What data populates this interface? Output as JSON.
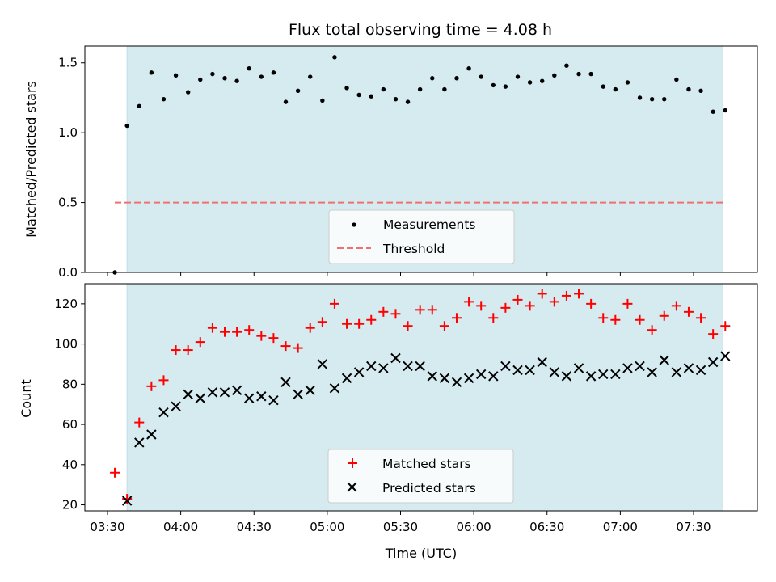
{
  "chart_data": [
    {
      "type": "scatter",
      "title": "Flux total observing time = 4.08 h",
      "ylabel": "Matched/Predicted stars",
      "xlabel": "",
      "x_ticks": [
        "03:30",
        "04:00",
        "04:30",
        "05:00",
        "05:30",
        "06:00",
        "06:30",
        "07:00",
        "07:30"
      ],
      "ylim": [
        0,
        1.62
      ],
      "y_ticks": [
        "0.0",
        "0.5",
        "1.0",
        "1.5"
      ],
      "shaded_interval": [
        "03:38",
        "07:42"
      ],
      "shade_color": "#d5ebf0",
      "series": [
        {
          "name": "Measurements",
          "marker": "dot",
          "color": "#000000",
          "x": [
            "03:33",
            "03:38",
            "03:43",
            "03:48",
            "03:53",
            "03:58",
            "04:03",
            "04:08",
            "04:13",
            "04:18",
            "04:23",
            "04:28",
            "04:33",
            "04:38",
            "04:43",
            "04:48",
            "04:53",
            "04:58",
            "05:03",
            "05:08",
            "05:13",
            "05:18",
            "05:23",
            "05:28",
            "05:33",
            "05:38",
            "05:43",
            "05:48",
            "05:53",
            "05:58",
            "06:03",
            "06:08",
            "06:13",
            "06:18",
            "06:23",
            "06:28",
            "06:33",
            "06:38",
            "06:43",
            "06:48",
            "06:53",
            "06:58",
            "07:03",
            "07:08",
            "07:13",
            "07:18",
            "07:23",
            "07:28",
            "07:33",
            "07:38",
            "07:43"
          ],
          "y": [
            0.0,
            1.05,
            1.19,
            1.43,
            1.24,
            1.41,
            1.29,
            1.38,
            1.42,
            1.39,
            1.37,
            1.46,
            1.4,
            1.43,
            1.22,
            1.3,
            1.4,
            1.23,
            1.54,
            1.32,
            1.27,
            1.26,
            1.31,
            1.24,
            1.22,
            1.31,
            1.39,
            1.31,
            1.39,
            1.46,
            1.4,
            1.34,
            1.33,
            1.4,
            1.36,
            1.37,
            1.41,
            1.48,
            1.42,
            1.42,
            1.33,
            1.31,
            1.36,
            1.25,
            1.24,
            1.24,
            1.38,
            1.31,
            1.3,
            1.15,
            1.16
          ]
        },
        {
          "name": "Threshold",
          "marker": "dashed-line",
          "color": "#f07070",
          "x": [
            "03:33",
            "07:43"
          ],
          "y": [
            0.5,
            0.5
          ]
        }
      ],
      "legend": {
        "position": "lower-center",
        "entries": [
          "Measurements",
          "Threshold"
        ]
      }
    },
    {
      "type": "scatter",
      "title": "",
      "ylabel": "Count",
      "xlabel": "Time (UTC)",
      "x_ticks": [
        "03:30",
        "04:00",
        "04:30",
        "05:00",
        "05:30",
        "06:00",
        "06:30",
        "07:00",
        "07:30"
      ],
      "ylim": [
        17,
        130
      ],
      "y_ticks": [
        "20",
        "40",
        "60",
        "80",
        "100",
        "120"
      ],
      "shaded_interval": [
        "03:38",
        "07:42"
      ],
      "shade_color": "#d5ebf0",
      "series": [
        {
          "name": "Matched stars",
          "marker": "plus",
          "color": "#ff0000",
          "x": [
            "03:33",
            "03:38",
            "03:43",
            "03:48",
            "03:53",
            "03:58",
            "04:03",
            "04:08",
            "04:13",
            "04:18",
            "04:23",
            "04:28",
            "04:33",
            "04:38",
            "04:43",
            "04:48",
            "04:53",
            "04:58",
            "05:03",
            "05:08",
            "05:13",
            "05:18",
            "05:23",
            "05:28",
            "05:33",
            "05:38",
            "05:43",
            "05:48",
            "05:53",
            "05:58",
            "06:03",
            "06:08",
            "06:13",
            "06:18",
            "06:23",
            "06:28",
            "06:33",
            "06:38",
            "06:43",
            "06:48",
            "06:53",
            "06:58",
            "07:03",
            "07:08",
            "07:13",
            "07:18",
            "07:23",
            "07:28",
            "07:33",
            "07:38",
            "07:43"
          ],
          "y": [
            36,
            23,
            61,
            79,
            82,
            97,
            97,
            101,
            108,
            106,
            106,
            107,
            104,
            103,
            99,
            98,
            108,
            111,
            120,
            110,
            110,
            112,
            116,
            115,
            109,
            117,
            117,
            109,
            113,
            121,
            119,
            113,
            118,
            122,
            119,
            125,
            121,
            124,
            125,
            120,
            113,
            112,
            120,
            112,
            107,
            114,
            119,
            116,
            113,
            105,
            109
          ]
        },
        {
          "name": "Predicted stars",
          "marker": "x",
          "color": "#000000",
          "x": [
            "03:38",
            "03:43",
            "03:48",
            "03:53",
            "03:58",
            "04:03",
            "04:08",
            "04:13",
            "04:18",
            "04:23",
            "04:28",
            "04:33",
            "04:38",
            "04:43",
            "04:48",
            "04:53",
            "04:58",
            "05:03",
            "05:08",
            "05:13",
            "05:18",
            "05:23",
            "05:28",
            "05:33",
            "05:38",
            "05:43",
            "05:48",
            "05:53",
            "05:58",
            "06:03",
            "06:08",
            "06:13",
            "06:18",
            "06:23",
            "06:28",
            "06:33",
            "06:38",
            "06:43",
            "06:48",
            "06:53",
            "06:58",
            "07:03",
            "07:08",
            "07:13",
            "07:18",
            "07:23",
            "07:28",
            "07:33",
            "07:38",
            "07:43"
          ],
          "y": [
            22,
            51,
            55,
            66,
            69,
            75,
            73,
            76,
            76,
            77,
            73,
            74,
            72,
            81,
            75,
            77,
            90,
            78,
            83,
            86,
            89,
            88,
            93,
            89,
            89,
            84,
            83,
            81,
            83,
            85,
            84,
            89,
            87,
            87,
            91,
            86,
            84,
            88,
            84,
            85,
            85,
            88,
            89,
            86,
            92,
            86,
            88,
            87,
            91,
            94
          ]
        }
      ],
      "legend": {
        "position": "lower-center",
        "entries": [
          "Matched stars",
          "Predicted stars"
        ]
      }
    }
  ]
}
